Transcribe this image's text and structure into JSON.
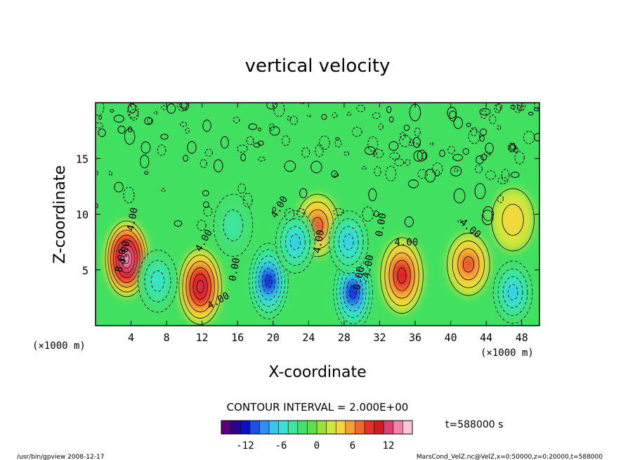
{
  "chart_data": {
    "type": "heatmap",
    "title": "vertical velocity",
    "xlabel": "X-coordinate",
    "ylabel": "Z-coordinate",
    "x_unit_left": "(×1000 m)",
    "x_unit_right": "(×1000 m)",
    "xlim": [
      0,
      50
    ],
    "ylim": [
      0,
      20
    ],
    "x_ticks": [
      4,
      8,
      12,
      16,
      20,
      24,
      28,
      32,
      36,
      40,
      44,
      48
    ],
    "y_ticks": [
      5,
      10,
      15
    ],
    "contour_interval_label": "CONTOUR INTERVAL = 2.000E+00",
    "contour_labels": [
      "4.00",
      "4.00",
      "8.00",
      "4.00",
      "0.00",
      "4.00",
      "4.00",
      "4.00",
      "4.00",
      "4.00",
      "-4.00",
      "0.00",
      "0.00"
    ],
    "colorbar": {
      "range": [
        -16,
        16
      ],
      "ticks": [
        -12,
        -6,
        0,
        6,
        12
      ],
      "colors": [
        "#5a0078",
        "#2a0090",
        "#0a10c8",
        "#1e4ee6",
        "#2e8ef4",
        "#34c8f0",
        "#38e2d0",
        "#3ae6a0",
        "#44e070",
        "#5ee04a",
        "#9ae03a",
        "#d2e63a",
        "#f4d83a",
        "#f6a032",
        "#f06a2c",
        "#e8302a",
        "#d81820",
        "#e04070",
        "#f084a8",
        "#f8c8d8"
      ]
    },
    "features": [
      {
        "kind": "updraft",
        "x": 3.5,
        "z": 6.0,
        "peak": 16
      },
      {
        "kind": "updraft",
        "x": 11.8,
        "z": 3.5,
        "peak": 12
      },
      {
        "kind": "updraft",
        "x": 25.0,
        "z": 9.0,
        "peak": 8
      },
      {
        "kind": "updraft",
        "x": 34.5,
        "z": 4.5,
        "peak": 10
      },
      {
        "kind": "updraft",
        "x": 42.0,
        "z": 5.5,
        "peak": 8
      },
      {
        "kind": "updraft",
        "x": 47.0,
        "z": 9.5,
        "peak": 4
      },
      {
        "kind": "downdraft",
        "x": 7.0,
        "z": 4.0,
        "peak": -6
      },
      {
        "kind": "downdraft",
        "x": 19.5,
        "z": 4.0,
        "peak": -12
      },
      {
        "kind": "downdraft",
        "x": 15.5,
        "z": 9.0,
        "peak": -4
      },
      {
        "kind": "downdraft",
        "x": 22.5,
        "z": 7.5,
        "peak": -8
      },
      {
        "kind": "downdraft",
        "x": 29.0,
        "z": 3.0,
        "peak": -12
      },
      {
        "kind": "downdraft",
        "x": 28.5,
        "z": 7.5,
        "peak": -8
      },
      {
        "kind": "downdraft",
        "x": 47.0,
        "z": 3.0,
        "peak": -8
      }
    ]
  },
  "time_label": "t=588000 s",
  "footer": {
    "left": "/usr/bin/gpview   2008-12-17",
    "right": "MarsCond_VelZ.nc@VelZ,x=0:50000,z=0:20000,t=588000"
  }
}
